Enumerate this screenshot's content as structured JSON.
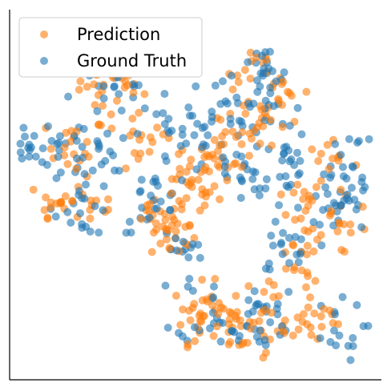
{
  "chart_data": {
    "type": "scatter",
    "title": "",
    "xlabel": "",
    "ylabel": "",
    "xlim": [
      0,
      100
    ],
    "ylim": [
      0,
      100
    ],
    "grid": false,
    "ticks": false,
    "legend": "top-left",
    "series": [
      {
        "name": "Prediction",
        "color": "#ff7f0e",
        "clusters": [
          {
            "cx": 29,
            "cy": 81,
            "r": 5,
            "n": 40
          },
          {
            "cx": 18,
            "cy": 63,
            "r": 4,
            "n": 20
          },
          {
            "cx": 48,
            "cy": 51,
            "r": 4,
            "n": 28
          },
          {
            "cx": 44,
            "cy": 39,
            "r": 3,
            "n": 26
          },
          {
            "cx": 52,
            "cy": 61,
            "r": 4,
            "n": 16
          },
          {
            "cx": 58,
            "cy": 64,
            "r": 6,
            "n": 18
          },
          {
            "cx": 68,
            "cy": 70,
            "r": 5,
            "n": 20
          },
          {
            "cx": 73,
            "cy": 78,
            "r": 4,
            "n": 14
          },
          {
            "cx": 52,
            "cy": 18,
            "r": 4,
            "n": 32
          },
          {
            "cx": 60,
            "cy": 14,
            "r": 5,
            "n": 20
          },
          {
            "cx": 72,
            "cy": 18,
            "r": 5,
            "n": 30
          },
          {
            "cx": 83,
            "cy": 16,
            "r": 4,
            "n": 14
          },
          {
            "cx": 80,
            "cy": 45,
            "r": 4,
            "n": 22
          },
          {
            "cx": 88,
            "cy": 42,
            "r": 4,
            "n": 14
          },
          {
            "cx": 86,
            "cy": 57,
            "r": 4,
            "n": 14
          },
          {
            "cx": 66,
            "cy": 84,
            "r": 3,
            "n": 12
          },
          {
            "cx": 12,
            "cy": 48,
            "r": 4,
            "n": 14
          },
          {
            "cx": 22,
            "cy": 48,
            "r": 4,
            "n": 14
          },
          {
            "cx": 39,
            "cy": 45,
            "r": 3,
            "n": 10
          },
          {
            "cx": 77,
            "cy": 30,
            "r": 3,
            "n": 10
          },
          {
            "cx": 35,
            "cy": 63,
            "r": 4,
            "n": 14
          }
        ]
      },
      {
        "name": "Ground Truth",
        "color": "#1f77b4",
        "clusters": [
          {
            "cx": 29,
            "cy": 81,
            "r": 5,
            "n": 36
          },
          {
            "cx": 6,
            "cy": 62,
            "r": 3,
            "n": 16
          },
          {
            "cx": 18,
            "cy": 63,
            "r": 5,
            "n": 22
          },
          {
            "cx": 20,
            "cy": 47,
            "r": 4,
            "n": 20
          },
          {
            "cx": 38,
            "cy": 48,
            "r": 4,
            "n": 22
          },
          {
            "cx": 46,
            "cy": 66,
            "r": 5,
            "n": 30
          },
          {
            "cx": 58,
            "cy": 72,
            "r": 5,
            "n": 24
          },
          {
            "cx": 68,
            "cy": 82,
            "r": 4,
            "n": 22
          },
          {
            "cx": 71,
            "cy": 70,
            "r": 4,
            "n": 14
          },
          {
            "cx": 64,
            "cy": 55,
            "r": 6,
            "n": 22
          },
          {
            "cx": 76,
            "cy": 58,
            "r": 4,
            "n": 18
          },
          {
            "cx": 76,
            "cy": 38,
            "r": 5,
            "n": 22
          },
          {
            "cx": 87,
            "cy": 46,
            "r": 5,
            "n": 22
          },
          {
            "cx": 92,
            "cy": 52,
            "r": 3,
            "n": 10
          },
          {
            "cx": 55,
            "cy": 20,
            "r": 5,
            "n": 26
          },
          {
            "cx": 67,
            "cy": 15,
            "r": 5,
            "n": 24
          },
          {
            "cx": 87,
            "cy": 13,
            "r": 4,
            "n": 16
          },
          {
            "cx": 46,
            "cy": 35,
            "r": 3,
            "n": 12
          },
          {
            "cx": 25,
            "cy": 62,
            "r": 3,
            "n": 12
          },
          {
            "cx": 90,
            "cy": 62,
            "r": 3,
            "n": 10
          }
        ]
      }
    ]
  }
}
